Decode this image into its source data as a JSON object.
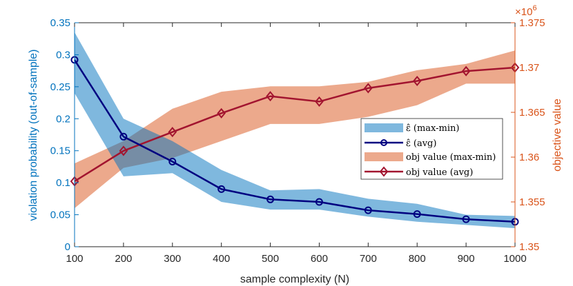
{
  "chart_data": {
    "type": "line",
    "x": [
      100,
      200,
      300,
      400,
      500,
      600,
      700,
      800,
      900,
      1000
    ],
    "xlabel": "sample complexity (N)",
    "xlim": [
      100,
      1000
    ],
    "xticks": [
      "100",
      "200",
      "300",
      "400",
      "500",
      "600",
      "700",
      "800",
      "900",
      "1000"
    ],
    "ylabel_left": "violation probability (out-of-sample)",
    "ylim_left": [
      0,
      0.35
    ],
    "yticks_left": [
      "0",
      "0.05",
      "0.1",
      "0.15",
      "0.2",
      "0.25",
      "0.3",
      "0.35"
    ],
    "ylabel_right": "objective value",
    "ylim_right": [
      1.35,
      1.375
    ],
    "yticks_right": [
      "1.35",
      "1.355",
      "1.36",
      "1.365",
      "1.37",
      "1.375"
    ],
    "right_multiplier": "×10",
    "right_multiplier_exp": "6",
    "series": [
      {
        "name": "ε̂ (max-min)",
        "axis": "left",
        "kind": "band",
        "upper": [
          0.335,
          0.2,
          0.165,
          0.12,
          0.088,
          0.09,
          0.075,
          0.067,
          0.05,
          0.048
        ],
        "lower": [
          0.24,
          0.11,
          0.115,
          0.07,
          0.058,
          0.058,
          0.047,
          0.039,
          0.034,
          0.029
        ],
        "color": "#0072BD"
      },
      {
        "name": "ε̂ (avg)",
        "axis": "left",
        "kind": "line",
        "values": [
          0.292,
          0.172,
          0.133,
          0.09,
          0.074,
          0.07,
          0.057,
          0.051,
          0.043,
          0.039
        ],
        "color": "#000080"
      },
      {
        "name": "obj value (max-min)",
        "axis": "right",
        "kind": "band",
        "upper": [
          1.3593,
          1.3618,
          1.3654,
          1.3673,
          1.3679,
          1.3679,
          1.3684,
          1.3697,
          1.3704,
          1.3719
        ],
        "lower": [
          1.3543,
          1.3588,
          1.3599,
          1.3618,
          1.3637,
          1.3637,
          1.3645,
          1.3658,
          1.3682,
          1.3682
        ],
        "color": "#D95319"
      },
      {
        "name": "obj value (avg)",
        "axis": "right",
        "kind": "line",
        "values": [
          1.3573,
          1.3607,
          1.3628,
          1.3649,
          1.3668,
          1.3662,
          1.3677,
          1.3685,
          1.3696,
          1.37
        ],
        "color": "#A2142F"
      }
    ],
    "legend": [
      "ε̂ (max-min)",
      "ε̂ (avg)",
      "obj value (max-min)",
      "obj value (avg)"
    ],
    "legend_position": "center-right",
    "grid": false
  }
}
